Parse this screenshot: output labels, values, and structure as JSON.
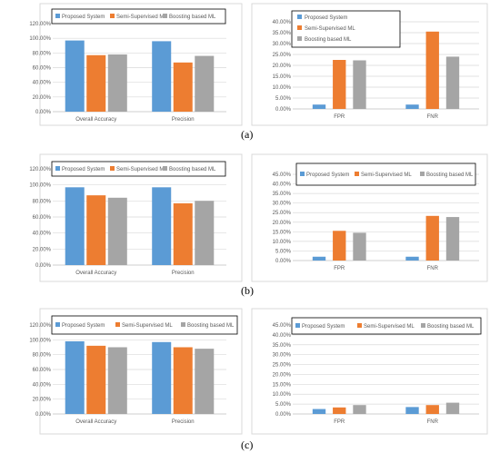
{
  "chart_data": [
    {
      "type": "bar",
      "panel": "(a)",
      "categories": [
        "Overall Accuracy",
        "Precision"
      ],
      "series": [
        {
          "name": "Proposed System",
          "values": [
            0.97,
            0.96
          ],
          "color": "#5b9bd5"
        },
        {
          "name": "Semi-Supervised ML",
          "values": [
            0.77,
            0.67
          ],
          "color": "#ed7d31"
        },
        {
          "name": "Boosting based ML",
          "values": [
            0.78,
            0.76
          ],
          "color": "#a5a5a5"
        }
      ],
      "ylim": [
        0,
        1.2
      ],
      "yticks": [
        "0.00%",
        "20.00%",
        "40.00%",
        "60.00%",
        "80.00%",
        "100.00%",
        "120.00%"
      ],
      "grid": true,
      "legend": "top"
    },
    {
      "type": "bar",
      "panel": "(a)",
      "categories": [
        "FPR",
        "FNR"
      ],
      "series": [
        {
          "name": "Proposed System",
          "values": [
            0.02,
            0.02
          ],
          "color": "#5b9bd5"
        },
        {
          "name": "Semi-Supervised ML",
          "values": [
            0.225,
            0.355
          ],
          "color": "#ed7d31"
        },
        {
          "name": "Boosting based ML",
          "values": [
            0.223,
            0.24
          ],
          "color": "#a5a5a5"
        }
      ],
      "ylim": [
        0,
        0.4
      ],
      "yticks": [
        "0.00%",
        "5.00%",
        "10.00%",
        "15.00%",
        "20.00%",
        "25.00%",
        "30.00%",
        "35.00%",
        "40.00%"
      ],
      "grid": true,
      "legend": "top"
    },
    {
      "type": "bar",
      "panel": "(b)",
      "categories": [
        "Overall Accuracy",
        "Precision"
      ],
      "series": [
        {
          "name": "Proposed System",
          "values": [
            0.97,
            0.97
          ],
          "color": "#5b9bd5"
        },
        {
          "name": "Semi-Supervised ML",
          "values": [
            0.87,
            0.77
          ],
          "color": "#ed7d31"
        },
        {
          "name": "Boosting based ML",
          "values": [
            0.84,
            0.8
          ],
          "color": "#a5a5a5"
        }
      ],
      "ylim": [
        0,
        1.2
      ],
      "yticks": [
        "0.00%",
        "20.00%",
        "40.00%",
        "60.00%",
        "80.00%",
        "100.00%",
        "120.00%"
      ],
      "grid": true,
      "legend": "top"
    },
    {
      "type": "bar",
      "panel": "(b)",
      "categories": [
        "FPR",
        "FNR"
      ],
      "series": [
        {
          "name": "Proposed System",
          "values": [
            0.02,
            0.02
          ],
          "color": "#5b9bd5"
        },
        {
          "name": "Semi-Supervised ML",
          "values": [
            0.155,
            0.233
          ],
          "color": "#ed7d31"
        },
        {
          "name": "Boosting based ML",
          "values": [
            0.145,
            0.227
          ],
          "color": "#a5a5a5"
        }
      ],
      "ylim": [
        0,
        0.45
      ],
      "yticks": [
        "0.00%",
        "5.00%",
        "10.00%",
        "15.00%",
        "20.00%",
        "25.00%",
        "30.00%",
        "35.00%",
        "40.00%",
        "45.00%"
      ],
      "grid": true,
      "legend": "top"
    },
    {
      "type": "bar",
      "panel": "(c)",
      "categories": [
        "Overall Accuracy",
        "Precision"
      ],
      "series": [
        {
          "name": "Proposed System",
          "values": [
            0.98,
            0.97
          ],
          "color": "#5b9bd5"
        },
        {
          "name": "Semi-Supervised ML",
          "values": [
            0.92,
            0.9
          ],
          "color": "#ed7d31"
        },
        {
          "name": "Boosting based ML",
          "values": [
            0.9,
            0.88
          ],
          "color": "#a5a5a5"
        }
      ],
      "ylim": [
        0,
        1.2
      ],
      "yticks": [
        "0.00%",
        "20.00%",
        "40.00%",
        "60.00%",
        "80.00%",
        "100.00%",
        "120.00%"
      ],
      "grid": true,
      "legend": "top"
    },
    {
      "type": "bar",
      "panel": "(c)",
      "categories": [
        "FPR",
        "FNR"
      ],
      "series": [
        {
          "name": "Proposed System",
          "values": [
            0.025,
            0.035
          ],
          "color": "#5b9bd5"
        },
        {
          "name": "Semi-Supervised ML",
          "values": [
            0.033,
            0.045
          ],
          "color": "#ed7d31"
        },
        {
          "name": "Boosting based ML",
          "values": [
            0.045,
            0.057
          ],
          "color": "#a5a5a5"
        }
      ],
      "ylim": [
        0,
        0.45
      ],
      "yticks": [
        "0.00%",
        "5.00%",
        "10.00%",
        "15.00%",
        "20.00%",
        "25.00%",
        "30.00%",
        "35.00%",
        "40.00%",
        "45.00%"
      ],
      "grid": true,
      "legend": "top"
    }
  ],
  "panel_labels": [
    "(a)",
    "(b)",
    "(c)"
  ],
  "colors": {
    "border": "#d9d9d9",
    "grid": "#d9d9d9",
    "text": "#595959",
    "axis": "#bfbfbf"
  }
}
